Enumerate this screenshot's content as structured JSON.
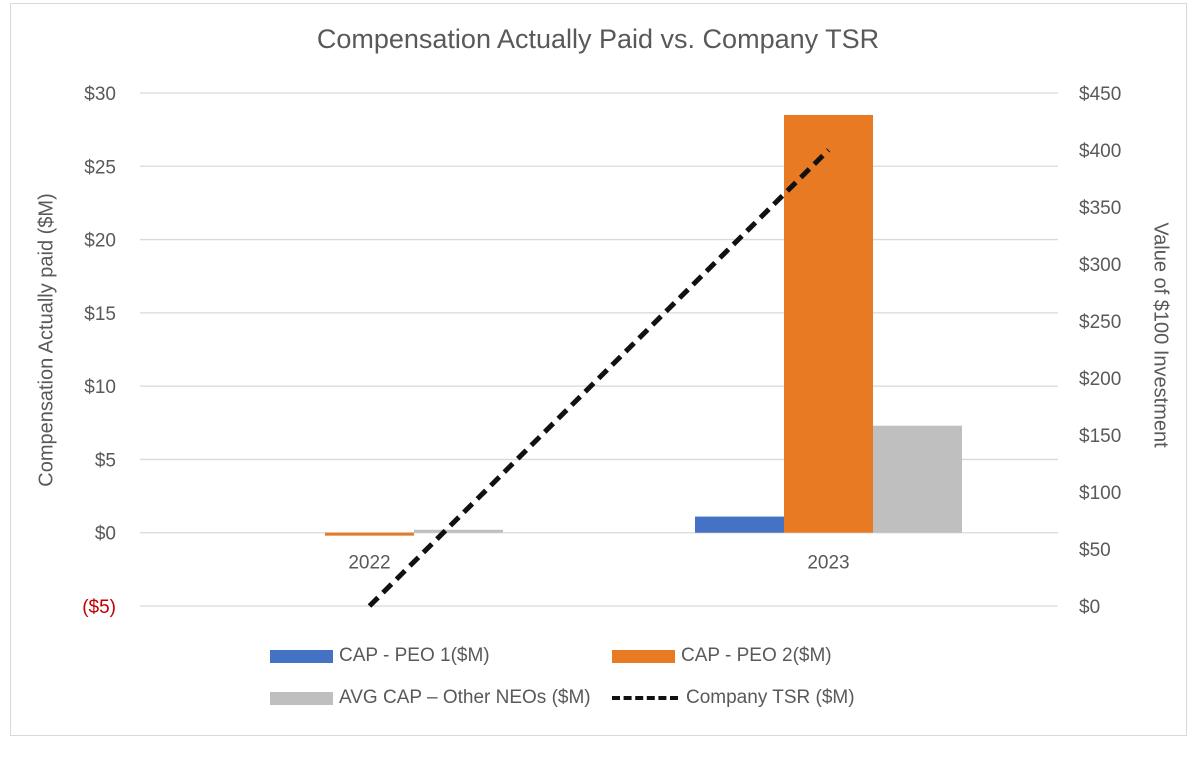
{
  "chart_data": {
    "type": "bar",
    "title": "Compensation Actually Paid vs. Company TSR",
    "categories": [
      "2022",
      "2023"
    ],
    "ylabel": "Compensation Actually paid ($M)",
    "ylabel_right": "Value of $100 Investment",
    "ylim": [
      -5,
      30
    ],
    "ylim_right": [
      0,
      450
    ],
    "yticks": [
      -5,
      0,
      5,
      10,
      15,
      20,
      25,
      30
    ],
    "ytick_labels": [
      "($5)",
      "$0",
      "$5",
      "$10",
      "$15",
      "$20",
      "$25",
      "$30"
    ],
    "yticks_right": [
      0,
      50,
      100,
      150,
      200,
      250,
      300,
      350,
      400,
      450
    ],
    "ytick_labels_right": [
      "$0",
      "$50",
      "$100",
      "$150",
      "$200",
      "$250",
      "$300",
      "$350",
      "$400",
      "$450"
    ],
    "negative_tick_color": "#c00000",
    "grid": true,
    "legend_position": "bottom",
    "series": [
      {
        "name": "CAP - PEO 1($M)",
        "type": "bar",
        "axis": "left",
        "color": "#4472c4",
        "values": [
          0,
          1.1
        ]
      },
      {
        "name": "CAP - PEO 2($M)",
        "type": "bar",
        "axis": "left",
        "color": "#e87a24",
        "values": [
          -0.2,
          28.5
        ]
      },
      {
        "name": "AVG CAP – Other NEOs ($M)",
        "type": "bar",
        "axis": "left",
        "color": "#bfbfbf",
        "values": [
          0.2,
          7.3
        ]
      },
      {
        "name": "Company TSR ($M)",
        "type": "line",
        "style": "dashed",
        "axis": "right",
        "color": "#111111",
        "values": [
          0,
          400
        ]
      }
    ]
  }
}
